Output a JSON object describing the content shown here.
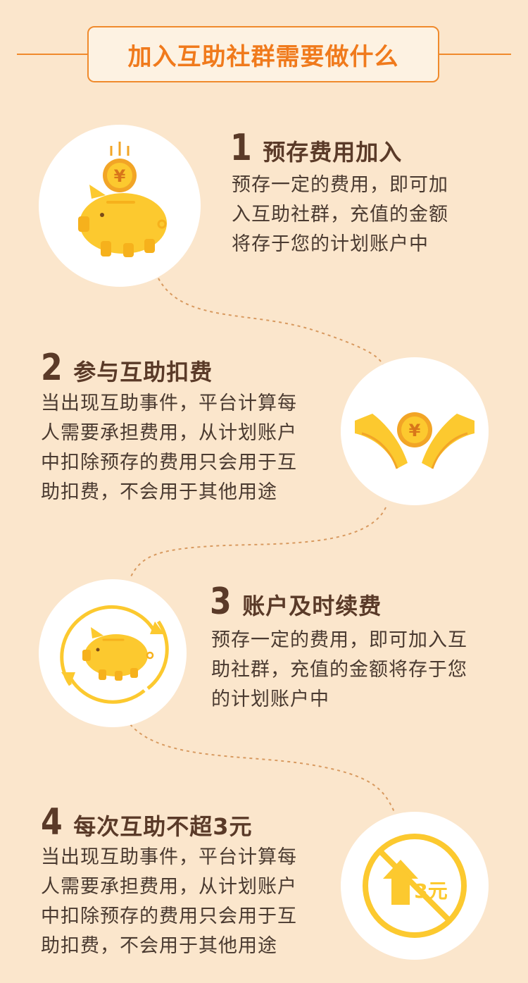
{
  "header": {
    "title": "加入互助社群需要做什么"
  },
  "steps": [
    {
      "number": "1",
      "title": "预存费用加入",
      "description": "预存一定的费用，即可加\n入互助社群，充值的金额\n将存于您的计划账户中",
      "icon": "piggy-bank-coin-icon"
    },
    {
      "number": "2",
      "title": "参与互助扣费",
      "description": "当出现互助事件，平台计算每\n人需要承担费用，从计划账户\n中扣除预存的费用只会用于互\n助扣费，不会用于其他用途",
      "icon": "hands-coin-icon"
    },
    {
      "number": "3",
      "title": "账户及时续费",
      "description": "预存一定的费用，即可加入互\n助社群，充值的金额将存于您\n的计划账户中",
      "icon": "piggy-bank-refresh-icon"
    },
    {
      "number": "4",
      "title": "每次互助不超3元",
      "description": "当出现互助事件，平台计算每\n人需要承担费用，从计划账户\n中扣除预存的费用只会用于互\n助扣费，不会用于其他用途",
      "icon": "no-increase-3yuan-icon"
    }
  ],
  "icons": {
    "coin_symbol": "¥",
    "limit_label": "3元"
  },
  "colors": {
    "background": "#fbe6cc",
    "accent": "#f08a2c",
    "gold": "#fbb927",
    "text_dark": "#5a3a28"
  }
}
